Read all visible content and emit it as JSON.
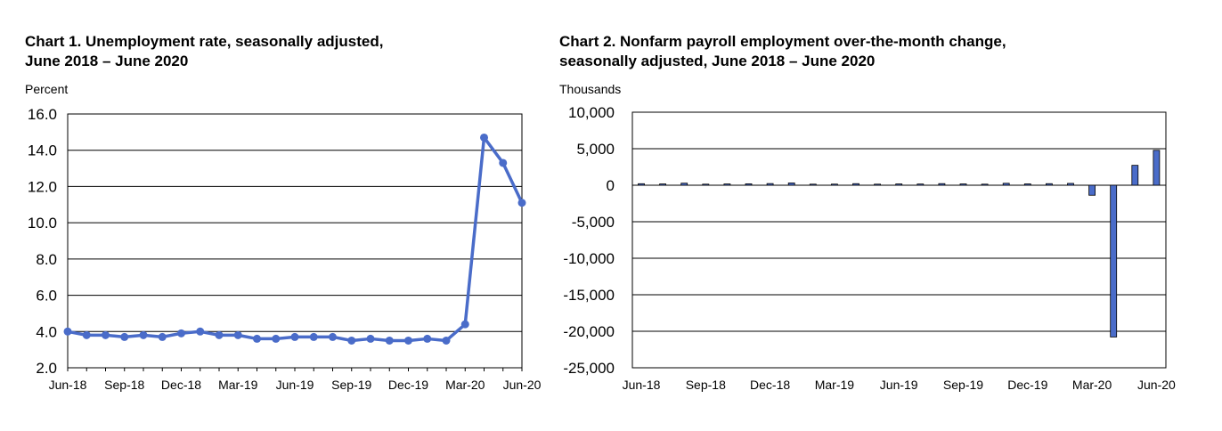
{
  "chart_data": [
    {
      "type": "line",
      "title_line1": "Chart 1. Unemployment rate, seasonally adjusted,",
      "title_line2": "June 2018 – June 2020",
      "ylabel": "Percent",
      "ylim": [
        2.0,
        16.0
      ],
      "yticks": [
        "2.0",
        "4.0",
        "6.0",
        "8.0",
        "10.0",
        "12.0",
        "14.0",
        "16.0"
      ],
      "xtick_labels": [
        {
          "index": 0,
          "label": "Jun-18"
        },
        {
          "index": 3,
          "label": "Sep-18"
        },
        {
          "index": 6,
          "label": "Dec-18"
        },
        {
          "index": 9,
          "label": "Mar-19"
        },
        {
          "index": 12,
          "label": "Jun-19"
        },
        {
          "index": 15,
          "label": "Sep-19"
        },
        {
          "index": 18,
          "label": "Dec-19"
        },
        {
          "index": 21,
          "label": "Mar-20"
        },
        {
          "index": 24,
          "label": "Jun-20"
        }
      ],
      "x": [
        "Jun-18",
        "Jul-18",
        "Aug-18",
        "Sep-18",
        "Oct-18",
        "Nov-18",
        "Dec-18",
        "Jan-19",
        "Feb-19",
        "Mar-19",
        "Apr-19",
        "May-19",
        "Jun-19",
        "Jul-19",
        "Aug-19",
        "Sep-19",
        "Oct-19",
        "Nov-19",
        "Dec-19",
        "Jan-20",
        "Feb-20",
        "Mar-20",
        "Apr-20",
        "May-20",
        "Jun-20"
      ],
      "values": [
        4.0,
        3.8,
        3.8,
        3.7,
        3.8,
        3.7,
        3.9,
        4.0,
        3.8,
        3.8,
        3.6,
        3.6,
        3.7,
        3.7,
        3.7,
        3.5,
        3.6,
        3.5,
        3.5,
        3.6,
        3.5,
        4.4,
        14.7,
        13.3,
        11.1
      ],
      "color": "#4a6cc9",
      "grid": true
    },
    {
      "type": "bar",
      "title_line1": "Chart 2. Nonfarm payroll employment over-the-month change,",
      "title_line2": "seasonally adjusted, June 2018 – June 2020",
      "ylabel": "Thousands",
      "ylim": [
        -25000,
        10000
      ],
      "yticks": [
        "-25,000",
        "-20,000",
        "-15,000",
        "-10,000",
        "-5,000",
        "0",
        "5,000",
        "10,000"
      ],
      "xtick_labels": [
        {
          "index": 0,
          "label": "Jun-18"
        },
        {
          "index": 3,
          "label": "Sep-18"
        },
        {
          "index": 6,
          "label": "Dec-18"
        },
        {
          "index": 9,
          "label": "Mar-19"
        },
        {
          "index": 12,
          "label": "Jun-19"
        },
        {
          "index": 15,
          "label": "Sep-19"
        },
        {
          "index": 18,
          "label": "Dec-19"
        },
        {
          "index": 21,
          "label": "Mar-20"
        },
        {
          "index": 24,
          "label": "Jun-20"
        }
      ],
      "x": [
        "Jun-18",
        "Jul-18",
        "Aug-18",
        "Sep-18",
        "Oct-18",
        "Nov-18",
        "Dec-18",
        "Jan-19",
        "Feb-19",
        "Mar-19",
        "Apr-19",
        "May-19",
        "Jun-19",
        "Jul-19",
        "Aug-19",
        "Sep-19",
        "Oct-19",
        "Nov-19",
        "Dec-19",
        "Jan-20",
        "Feb-20",
        "Mar-20",
        "Apr-20",
        "May-20",
        "Jun-20"
      ],
      "values": [
        208,
        178,
        282,
        108,
        177,
        196,
        227,
        312,
        56,
        153,
        216,
        62,
        178,
        166,
        219,
        180,
        128,
        266,
        184,
        214,
        251,
        -1373,
        -20787,
        2725,
        4781
      ],
      "color": "#4a6cc9",
      "grid": true
    }
  ]
}
